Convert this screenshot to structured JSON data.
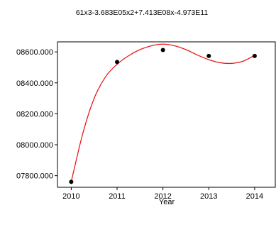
{
  "chart_data": {
    "type": "scatter",
    "title": "61x3-3.683E05x2+7.413E08x-4.973E11",
    "xlabel": "Year",
    "ylabel": "",
    "x": [
      2010,
      2011,
      2012,
      2013,
      2014
    ],
    "y": [
      7760,
      8535,
      8612,
      8574,
      8574
    ],
    "xlim": [
      2009.7,
      2014.45
    ],
    "ylim": [
      7725,
      8665
    ],
    "x_ticks": [
      "2010",
      "2011",
      "2012",
      "2013",
      "2014"
    ],
    "y_ticks": [
      {
        "value": 7800,
        "label": "07800.000"
      },
      {
        "value": 8000,
        "label": "08000.000"
      },
      {
        "value": 8200,
        "label": "08200.000"
      },
      {
        "value": 8400,
        "label": "08400.000"
      },
      {
        "value": 8600,
        "label": "08600.000"
      }
    ],
    "fit_line": {
      "type": "cubic-spline-trend",
      "color": "#e8191b",
      "curve": [
        [
          2010.0,
          7760
        ],
        [
          2010.25,
          8070
        ],
        [
          2010.5,
          8300
        ],
        [
          2010.75,
          8440
        ],
        [
          2011.0,
          8520
        ],
        [
          2011.25,
          8575
        ],
        [
          2011.5,
          8615
        ],
        [
          2011.75,
          8640
        ],
        [
          2012.0,
          8650
        ],
        [
          2012.25,
          8640
        ],
        [
          2012.5,
          8615
        ],
        [
          2012.75,
          8580
        ],
        [
          2013.0,
          8550
        ],
        [
          2013.25,
          8530
        ],
        [
          2013.5,
          8526
        ],
        [
          2013.75,
          8540
        ],
        [
          2014.0,
          8578
        ]
      ]
    },
    "grid": false,
    "legend": "none",
    "point_color": "#000000"
  }
}
